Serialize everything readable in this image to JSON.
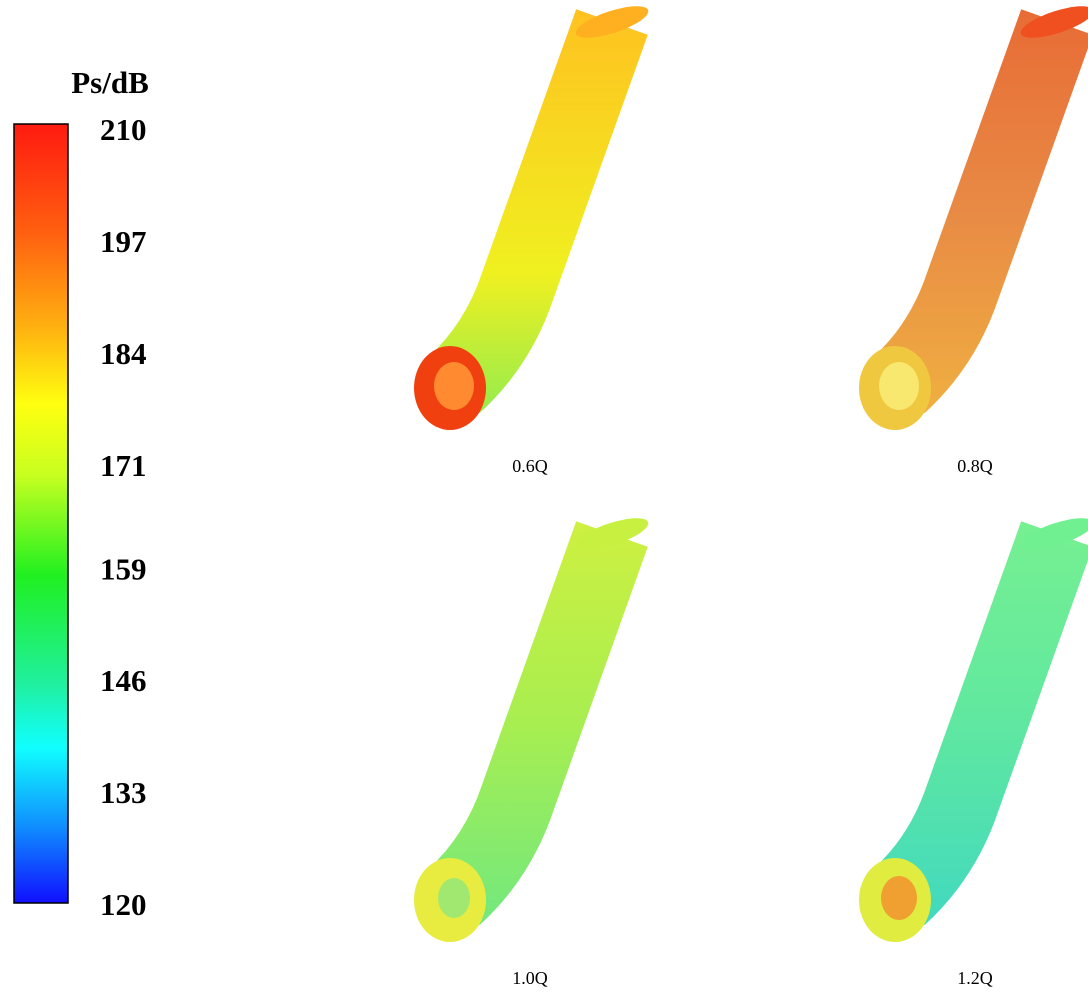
{
  "colorbar": {
    "title": "Ps/dB",
    "ticks": [
      210,
      197,
      184,
      171,
      159,
      146,
      133,
      120
    ]
  },
  "panels": [
    {
      "caption": "0.6Q"
    },
    {
      "caption": "0.8Q"
    },
    {
      "caption": "1.0Q"
    },
    {
      "caption": "1.2Q"
    }
  ]
}
